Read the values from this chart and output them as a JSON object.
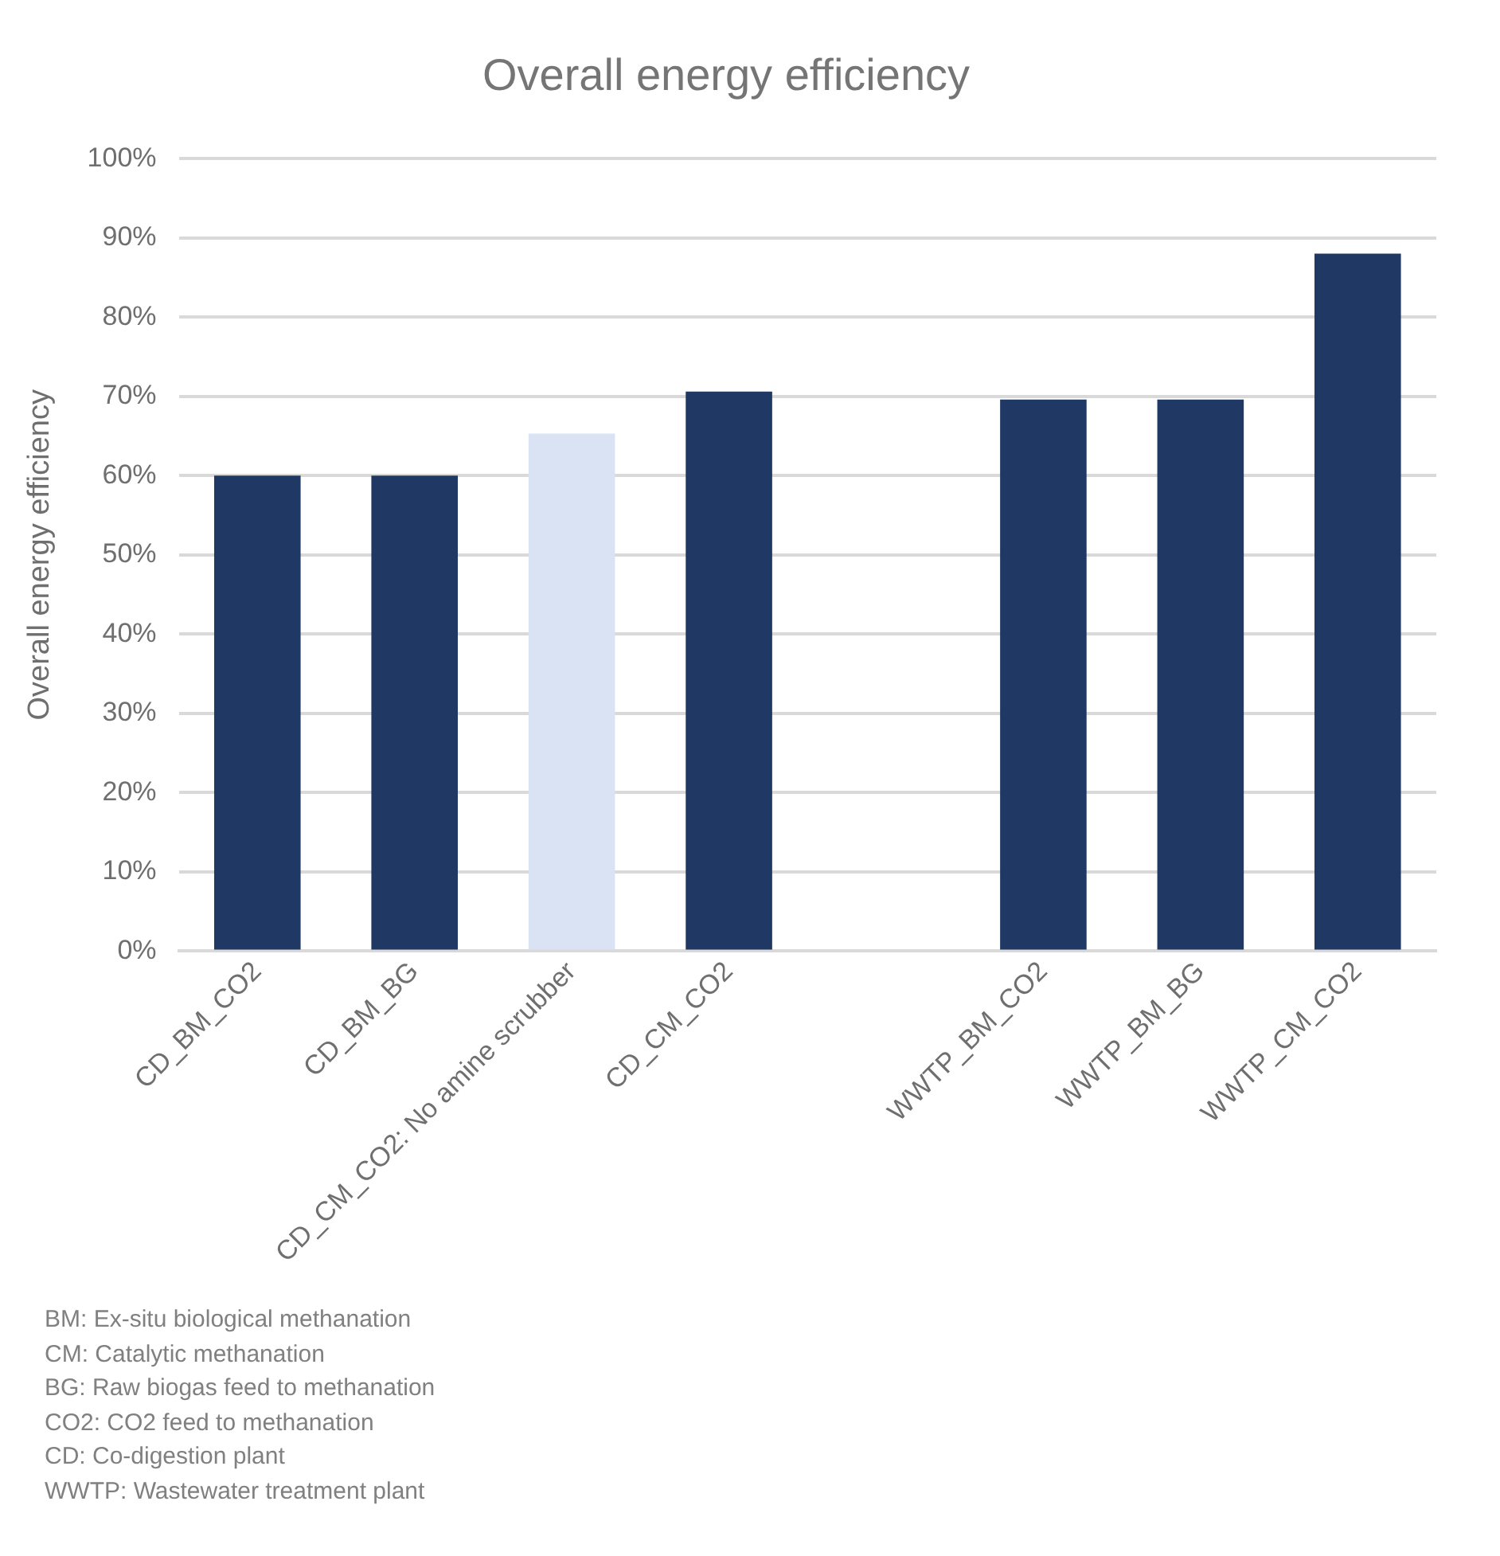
{
  "chart_data": {
    "type": "bar",
    "title": "Overall energy efficiency",
    "ylabel": "Overall energy efficiency",
    "categories": [
      "CD_BM_CO2",
      "CD_BM_BG",
      "CD_CM_CO2: No amine scrubber",
      "CD_CM_CO2",
      null,
      "WWTP_BM_CO2",
      "WWTP_BM_BG",
      "WWTP_CM_CO2"
    ],
    "values": [
      60,
      60,
      65.3,
      70.6,
      null,
      69.6,
      69.6,
      88
    ],
    "colors": [
      "#203864",
      "#203864",
      "#dae3f3",
      "#203864",
      "#203864",
      "#203864",
      "#203864",
      "#203864"
    ],
    "ylim": [
      0,
      100
    ],
    "yticks": [
      {
        "value": 0,
        "label": "0%"
      },
      {
        "value": 10,
        "label": "10%"
      },
      {
        "value": 20,
        "label": "20%"
      },
      {
        "value": 30,
        "label": "30%"
      },
      {
        "value": 40,
        "label": "40%"
      },
      {
        "value": 50,
        "label": "50%"
      },
      {
        "value": 60,
        "label": "60%"
      },
      {
        "value": 70,
        "label": "70%"
      },
      {
        "value": 80,
        "label": "80%"
      },
      {
        "value": 90,
        "label": "90%"
      },
      {
        "value": 100,
        "label": "100%"
      }
    ],
    "grid": "y",
    "legend": false,
    "annotations": [
      "BM: Ex-situ biological methanation",
      "CM: Catalytic methanation",
      "BG: Raw biogas feed to methanation",
      "CO2: CO2 feed to methanation",
      "CD: Co-digestion plant",
      "WWTP: Wastewater treatment plant"
    ]
  }
}
